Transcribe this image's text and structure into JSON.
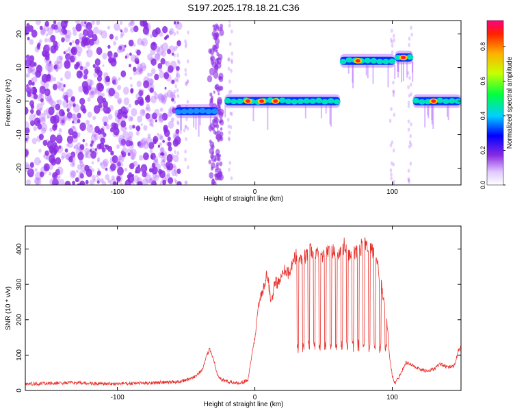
{
  "title": "S197.2025.178.18.21.C36",
  "chart_data": [
    {
      "type": "heatmap",
      "xlabel": "Height of straight line (km)",
      "ylabel": "Frequency (Hz)",
      "xlim": [
        -167,
        150
      ],
      "ylim": [
        -25,
        24
      ],
      "x_ticks": [
        -100,
        0,
        100
      ],
      "y_ticks": [
        -20,
        -10,
        0,
        10,
        20
      ],
      "grid": false,
      "colorbar": {
        "label": "Normalized spectral amplitude",
        "range": [
          0,
          0.95
        ],
        "ticks": [
          0.0,
          0.2,
          0.4,
          0.6,
          0.8
        ],
        "tick_labels": [
          "0.0",
          "0.2",
          "0.4",
          "0.6",
          "0.8"
        ]
      },
      "colors": {
        "noise": "#8a2be2",
        "low": "#b060ff",
        "mid": "#0033ff",
        "high": "#00e0c0",
        "peak": "#ff2020"
      },
      "bands": [
        {
          "x_start": -58,
          "x_end": -27,
          "freq": -3,
          "level": "mid"
        },
        {
          "x_start": -22,
          "x_end": 62,
          "freq": 0,
          "level": "high"
        },
        {
          "x_start": 62,
          "x_end": 102,
          "freq": 12,
          "level": "high"
        },
        {
          "x_start": 102,
          "x_end": 115,
          "freq": 13,
          "level": "high"
        },
        {
          "x_start": 115,
          "x_end": 150,
          "freq": 0,
          "level": "high"
        }
      ]
    },
    {
      "type": "line",
      "xlabel": "Height of straight line (km)",
      "ylabel": "SNR (10 * v/v)",
      "xlim": [
        -167,
        150
      ],
      "ylim": [
        0,
        465
      ],
      "x_ticks": [
        -100,
        0,
        100
      ],
      "y_ticks": [
        0,
        100,
        200,
        300,
        400
      ],
      "grid": false,
      "series": [
        {
          "color": "#e8302a",
          "x": [
            -167,
            -150,
            -130,
            -110,
            -90,
            -70,
            -55,
            -45,
            -38,
            -33,
            -30,
            -27,
            -24,
            -20,
            -15,
            -10,
            -5,
            0,
            3,
            6,
            9,
            12,
            15,
            18,
            20,
            25,
            30,
            35,
            40,
            45,
            50,
            55,
            60,
            65,
            70,
            75,
            80,
            85,
            88,
            92,
            96,
            98,
            100,
            102,
            105,
            110,
            115,
            120,
            125,
            130,
            135,
            140,
            145,
            148,
            150
          ],
          "y": [
            18,
            20,
            22,
            18,
            20,
            22,
            25,
            35,
            60,
            120,
            90,
            40,
            30,
            25,
            22,
            22,
            30,
            150,
            250,
            280,
            330,
            250,
            310,
            300,
            350,
            330,
            380,
            370,
            400,
            390,
            380,
            400,
            380,
            410,
            380,
            400,
            410,
            400,
            380,
            300,
            200,
            100,
            40,
            20,
            40,
            80,
            70,
            60,
            55,
            60,
            75,
            65,
            70,
            110,
            120
          ]
        }
      ]
    }
  ]
}
